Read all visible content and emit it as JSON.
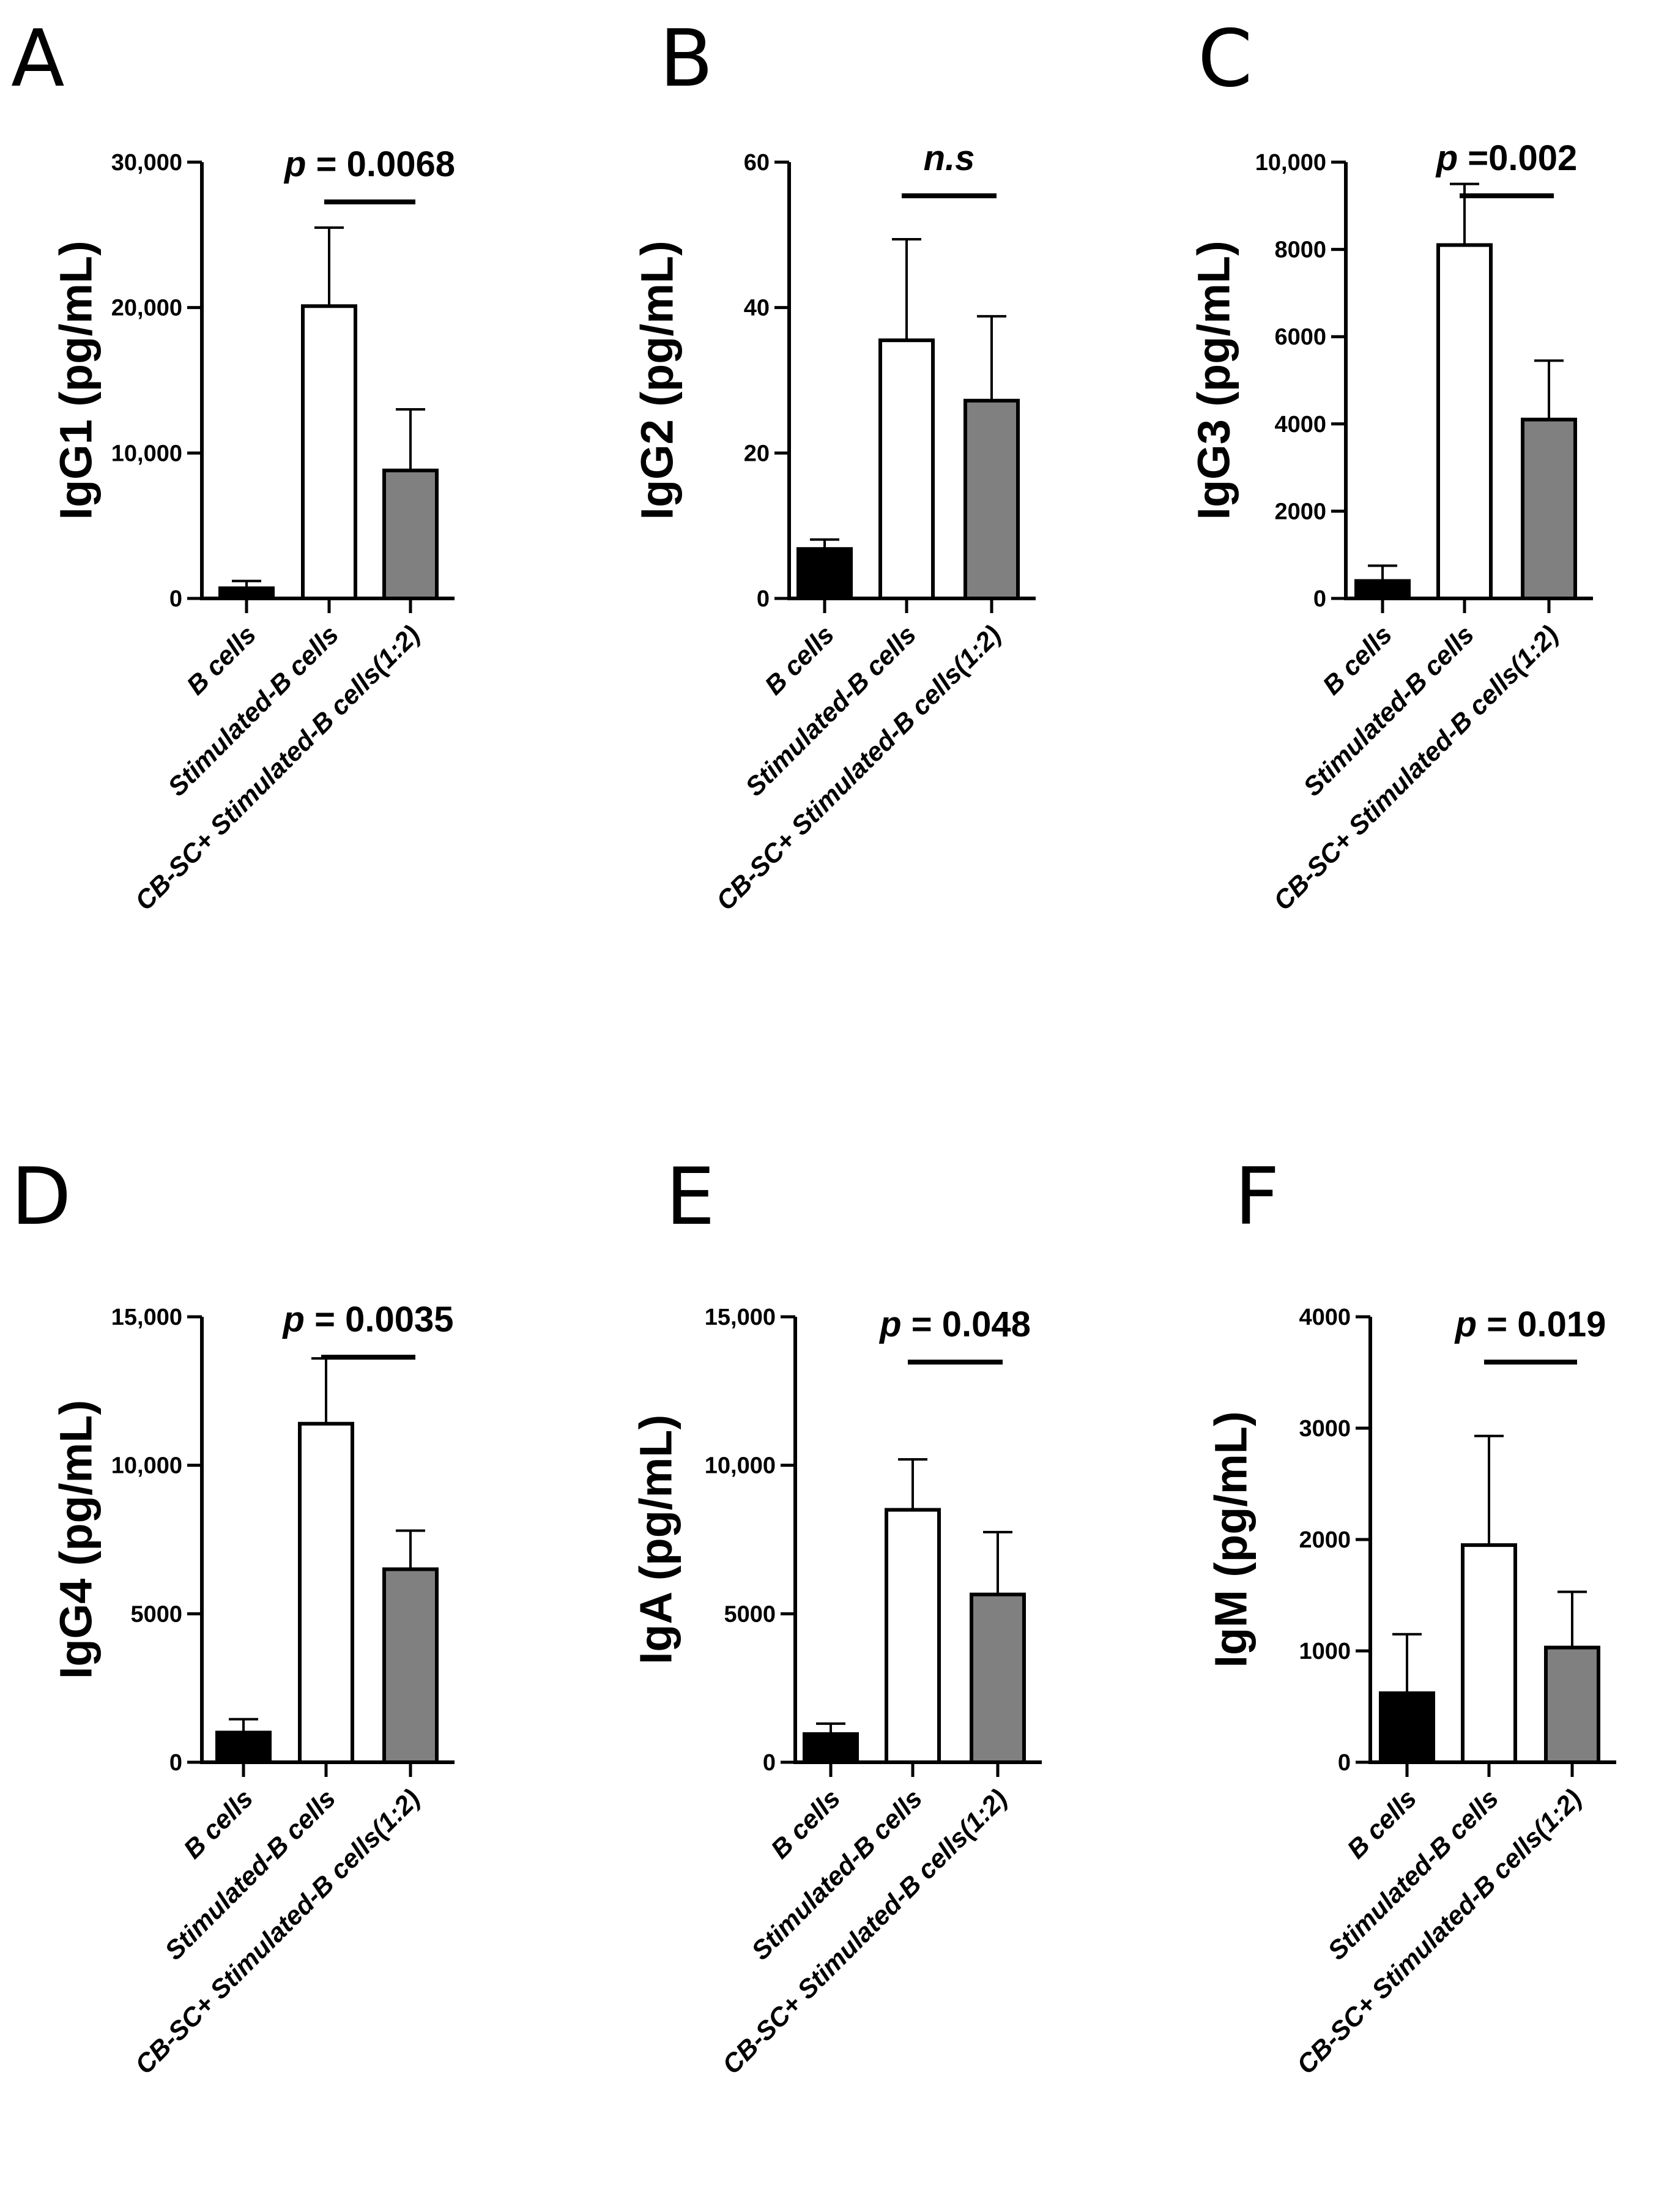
{
  "figure": {
    "colors": {
      "b_cells": "#000000",
      "stimulated": "#ffffff",
      "cbsc": "#808080",
      "axis": "#000000"
    }
  },
  "chart_data": [
    {
      "panel": "A",
      "type": "bar",
      "ylabel": "IgG1 (pg/mL)",
      "categories": [
        "B cells",
        "Stimulated-B cells",
        "CB-SC+ Stimulated-B cells(1:2)"
      ],
      "values": [
        700,
        20100,
        8800
      ],
      "errors": [
        500,
        5400,
        4200
      ],
      "ylim": [
        0,
        30000
      ],
      "yticks": [
        0,
        10000,
        20000,
        30000
      ],
      "ytick_labels": [
        "0",
        "10,000",
        "20,000",
        "30,000"
      ],
      "significance": {
        "between": [
          1,
          2
        ],
        "prefix": "p",
        "text": " = 0.0068"
      }
    },
    {
      "panel": "B",
      "type": "bar",
      "ylabel": "IgG2 (pg/mL)",
      "categories": [
        "B cells",
        "Stimulated-B cells",
        "CB-SC+ Stimulated-B cells(1:2)"
      ],
      "values": [
        6.8,
        35.5,
        27.2
      ],
      "errors": [
        1.3,
        13.9,
        11.6
      ],
      "ylim": [
        0,
        60
      ],
      "yticks": [
        0,
        20,
        40,
        60
      ],
      "ytick_labels": [
        "0",
        "20",
        "40",
        "60"
      ],
      "significance": {
        "between": [
          1,
          2
        ],
        "prefix": "n.s",
        "text": ""
      }
    },
    {
      "panel": "C",
      "type": "bar",
      "ylabel": "IgG3 (pg/mL)",
      "categories": [
        "B cells",
        "Stimulated-B cells",
        "CB-SC+ Stimulated-B cells(1:2)"
      ],
      "values": [
        400,
        8100,
        4100
      ],
      "errors": [
        350,
        1400,
        1350
      ],
      "ylim": [
        0,
        10000
      ],
      "yticks": [
        0,
        2000,
        4000,
        6000,
        8000,
        10000
      ],
      "ytick_labels": [
        "0",
        "2000",
        "4000",
        "6000",
        "8000",
        "10,000"
      ],
      "significance": {
        "between": [
          1,
          2
        ],
        "prefix": "p",
        "text": " =0.002"
      }
    },
    {
      "panel": "D",
      "type": "bar",
      "ylabel": "IgG4 (pg/mL)",
      "categories": [
        "B cells",
        "Stimulated-B cells",
        "CB-SC+ Stimulated-B cells(1:2)"
      ],
      "values": [
        1000,
        11400,
        6500
      ],
      "errors": [
        450,
        2200,
        1300
      ],
      "ylim": [
        0,
        15000
      ],
      "yticks": [
        0,
        5000,
        10000,
        15000
      ],
      "ytick_labels": [
        "0",
        "5000",
        "10,000",
        "15,000"
      ],
      "significance": {
        "between": [
          1,
          2
        ],
        "prefix": "p",
        "text": " = 0.0035"
      }
    },
    {
      "panel": "E",
      "type": "bar",
      "ylabel": "IgA (pg/mL)",
      "categories": [
        "B cells",
        "Stimulated-B cells",
        "CB-SC+ Stimulated-B cells(1:2)"
      ],
      "values": [
        950,
        8500,
        5650
      ],
      "errors": [
        350,
        1700,
        2100
      ],
      "ylim": [
        0,
        15000
      ],
      "yticks": [
        0,
        5000,
        10000,
        15000
      ],
      "ytick_labels": [
        "0",
        "5000",
        "10,000",
        "15,000"
      ],
      "significance": {
        "between": [
          1,
          2
        ],
        "prefix": "p",
        "text": " = 0.048"
      }
    },
    {
      "panel": "F",
      "type": "bar",
      "ylabel": "IgM (pg/mL)",
      "categories": [
        "B cells",
        "Stimulated-B cells",
        "CB-SC+ Stimulated-B cells(1:2)"
      ],
      "values": [
        620,
        1950,
        1030
      ],
      "errors": [
        530,
        980,
        500
      ],
      "ylim": [
        0,
        4000
      ],
      "yticks": [
        0,
        1000,
        2000,
        3000,
        4000
      ],
      "ytick_labels": [
        "0",
        "1000",
        "2000",
        "3000",
        "4000"
      ],
      "significance": {
        "between": [
          1,
          2
        ],
        "prefix": "p",
        "text": " = 0.019"
      }
    }
  ]
}
